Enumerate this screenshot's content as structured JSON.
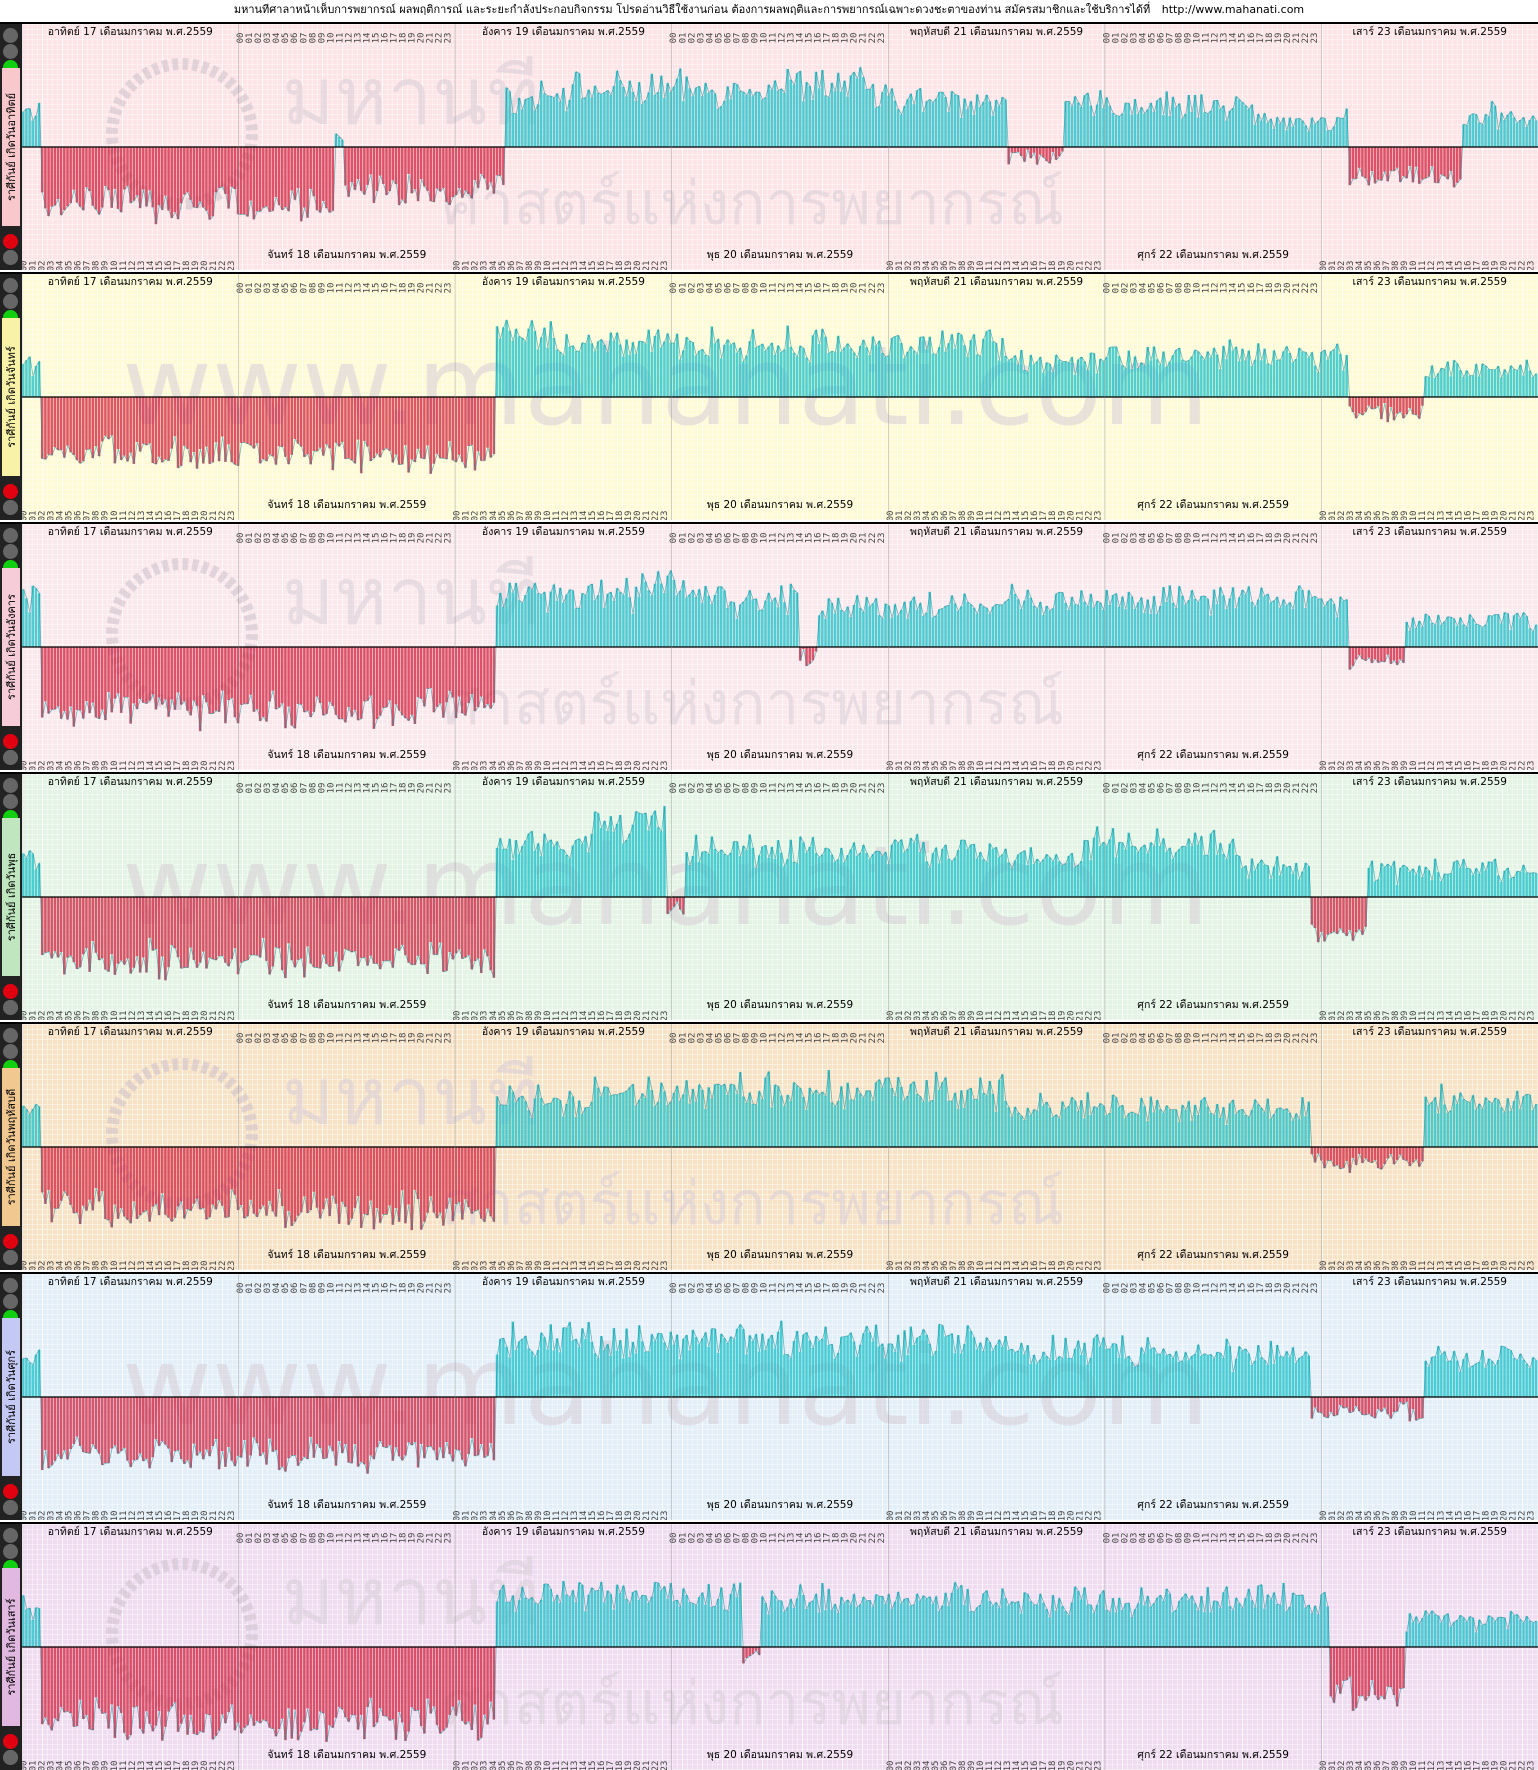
{
  "header": {
    "title": "มหานทีศาลาหน้าเห็บการพยากรณ์ ผลพฤติการณ์ และระยะกำลังประกอบกิจกรรม โปรดอ่านวิธีใช้งานก่อน ต้องการผลพฤติและการพยากรณ์เฉพาะดวงชะตาของท่าน สมัครสมาชิกและใช้บริการได้ที่",
    "url": "http://www.mahanati.com"
  },
  "days_top": [
    "อาทิตย์ 17 เดือนมกราคม พ.ศ.2559",
    "อังคาร 19 เดือนมกราคม พ.ศ.2559",
    "พฤหัสบดี 21 เดือนมกราคม พ.ศ.2559",
    "เสาร์ 23 เดือนมกราคม พ.ศ.2559"
  ],
  "days_bottom": [
    "จันทร์ 18 เดือนมกราคม พ.ศ.2559",
    "พุธ 20 เดือนมกราคม พ.ศ.2559",
    "ศุกร์ 22 เดือนมกราคม พ.ศ.2559"
  ],
  "hours": [
    "00",
    "01",
    "02",
    "03",
    "04",
    "05",
    "06",
    "07",
    "08",
    "09",
    "10",
    "11",
    "12",
    "13",
    "14",
    "15",
    "16",
    "17",
    "18",
    "19",
    "20",
    "21",
    "22",
    "23"
  ],
  "watermarks": {
    "url": "www.mahanati.com",
    "logo": "มหานที",
    "tagline": "ศาสตร์แห่งการพยากรณ์"
  },
  "colors": {
    "positive": "#18c0c8",
    "negative": "#d0203c",
    "baseline": "#000000",
    "green_light": "#10d010",
    "red_light": "#e00010"
  },
  "chart_data": [
    {
      "type": "bar",
      "title": "",
      "side_label": "ราศีกันย์ เกิดวันอาทิตย์",
      "background": "#fde4e6",
      "watermark": "logo",
      "segments": [
        [
          0,
          2,
          0.35
        ],
        [
          2,
          33,
          -0.55
        ],
        [
          33,
          34,
          0.1
        ],
        [
          34,
          51,
          -0.4
        ],
        [
          51,
          54,
          0.45
        ],
        [
          54,
          76,
          0.55
        ],
        [
          76,
          90,
          0.6
        ],
        [
          90,
          104,
          0.45
        ],
        [
          104,
          110,
          -0.1
        ],
        [
          110,
          130,
          0.4
        ],
        [
          130,
          140,
          0.25
        ],
        [
          140,
          144,
          -0.3
        ],
        [
          144,
          152,
          -0.3
        ],
        [
          152,
          160,
          0.3
        ]
      ]
    },
    {
      "type": "bar",
      "title": "",
      "side_label": "ราศีกันย์ เกิดวันจันทร์",
      "background": "#fdfad4",
      "watermark": "url",
      "segments": [
        [
          0,
          2,
          0.35
        ],
        [
          2,
          50,
          -0.55
        ],
        [
          50,
          56,
          0.6
        ],
        [
          56,
          104,
          0.5
        ],
        [
          104,
          112,
          0.35
        ],
        [
          112,
          140,
          0.4
        ],
        [
          140,
          148,
          -0.15
        ],
        [
          148,
          160,
          0.25
        ]
      ]
    },
    {
      "type": "bar",
      "title": "",
      "side_label": "ราศีกันย์ เกิดวันอังคาร",
      "background": "#fbe8ec",
      "watermark": "logo",
      "segments": [
        [
          0,
          2,
          0.45
        ],
        [
          2,
          50,
          -0.6
        ],
        [
          50,
          65,
          0.5
        ],
        [
          65,
          70,
          0.65
        ],
        [
          70,
          82,
          0.45
        ],
        [
          82,
          84,
          -0.1
        ],
        [
          84,
          104,
          0.4
        ],
        [
          104,
          140,
          0.45
        ],
        [
          140,
          146,
          -0.15
        ],
        [
          146,
          160,
          0.25
        ]
      ]
    },
    {
      "type": "bar",
      "title": "",
      "side_label": "ราศีกันย์ เกิดวันพุธ",
      "background": "#e4f4e4",
      "watermark": "url",
      "segments": [
        [
          0,
          2,
          0.35
        ],
        [
          2,
          50,
          -0.6
        ],
        [
          50,
          60,
          0.5
        ],
        [
          60,
          68,
          0.7
        ],
        [
          68,
          70,
          -0.1
        ],
        [
          70,
          104,
          0.45
        ],
        [
          104,
          112,
          0.35
        ],
        [
          112,
          128,
          0.5
        ],
        [
          128,
          136,
          0.3
        ],
        [
          136,
          142,
          -0.35
        ],
        [
          142,
          160,
          0.25
        ]
      ]
    },
    {
      "type": "bar",
      "title": "",
      "side_label": "ราศีกันย์ เกิดวันพฤหัสบดี",
      "background": "#f7e2c6",
      "watermark": "logo",
      "segments": [
        [
          0,
          2,
          0.35
        ],
        [
          2,
          50,
          -0.6
        ],
        [
          50,
          60,
          0.45
        ],
        [
          60,
          104,
          0.55
        ],
        [
          104,
          120,
          0.4
        ],
        [
          120,
          136,
          0.35
        ],
        [
          136,
          148,
          -0.15
        ],
        [
          148,
          160,
          0.45
        ]
      ]
    },
    {
      "type": "bar",
      "title": "",
      "side_label": "ราศีกันย์ เกิดวันศุกร์",
      "background": "#e2eef8",
      "watermark": "url",
      "segments": [
        [
          0,
          2,
          0.35
        ],
        [
          2,
          50,
          -0.55
        ],
        [
          50,
          104,
          0.55
        ],
        [
          104,
          120,
          0.45
        ],
        [
          120,
          136,
          0.4
        ],
        [
          136,
          148,
          -0.15
        ],
        [
          148,
          160,
          0.35
        ]
      ]
    },
    {
      "type": "bar",
      "title": "",
      "side_label": "ราศีกันย์ เกิดวันเสาร์",
      "background": "#f0dcf0",
      "watermark": "logo",
      "segments": [
        [
          0,
          2,
          0.35
        ],
        [
          2,
          50,
          -0.7
        ],
        [
          50,
          76,
          0.5
        ],
        [
          76,
          78,
          -0.1
        ],
        [
          78,
          104,
          0.45
        ],
        [
          104,
          138,
          0.45
        ],
        [
          138,
          146,
          -0.45
        ],
        [
          146,
          160,
          0.25
        ]
      ]
    }
  ]
}
